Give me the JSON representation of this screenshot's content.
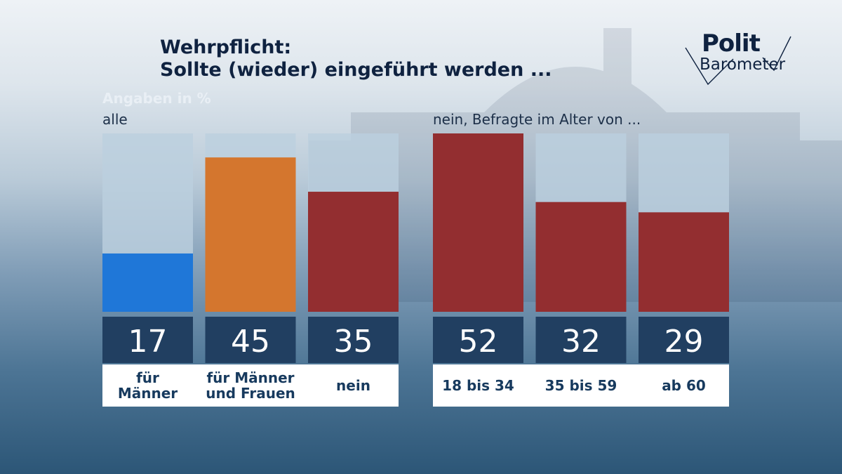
{
  "title": {
    "line1": "Wehrpflicht:",
    "line2": "Sollte (wieder) eingeführt werden ..."
  },
  "logo": {
    "part1": "Polit",
    "part2": "Barometer"
  },
  "unit_note": "Angaben in %",
  "colors": {
    "track": "#bccfdf",
    "value_box": "#213f61",
    "blue": "#1f77d8",
    "orange": "#d4762e",
    "red": "#932e30",
    "label_text": "#173a5e"
  },
  "chart_data": [
    {
      "type": "bar",
      "title": "alle",
      "categories": [
        "für Männer",
        "für Männer und Frauen",
        "nein"
      ],
      "category_lines": [
        [
          "für",
          "Männer"
        ],
        [
          "für Männer",
          "und Frauen"
        ],
        [
          "nein"
        ]
      ],
      "values": [
        17,
        45,
        35
      ],
      "bar_colors": [
        "#1f77d8",
        "#d4762e",
        "#932e30"
      ],
      "ylim": [
        0,
        52
      ],
      "unit": "%"
    },
    {
      "type": "bar",
      "title": "nein, Befragte im Alter von ...",
      "categories": [
        "18 bis 34",
        "35 bis 59",
        "ab 60"
      ],
      "category_lines": [
        [
          "18 bis 34"
        ],
        [
          "35 bis 59"
        ],
        [
          "ab 60"
        ]
      ],
      "values": [
        52,
        32,
        29
      ],
      "bar_colors": [
        "#932e30",
        "#932e30",
        "#932e30"
      ],
      "ylim": [
        0,
        52
      ],
      "unit": "%"
    }
  ]
}
